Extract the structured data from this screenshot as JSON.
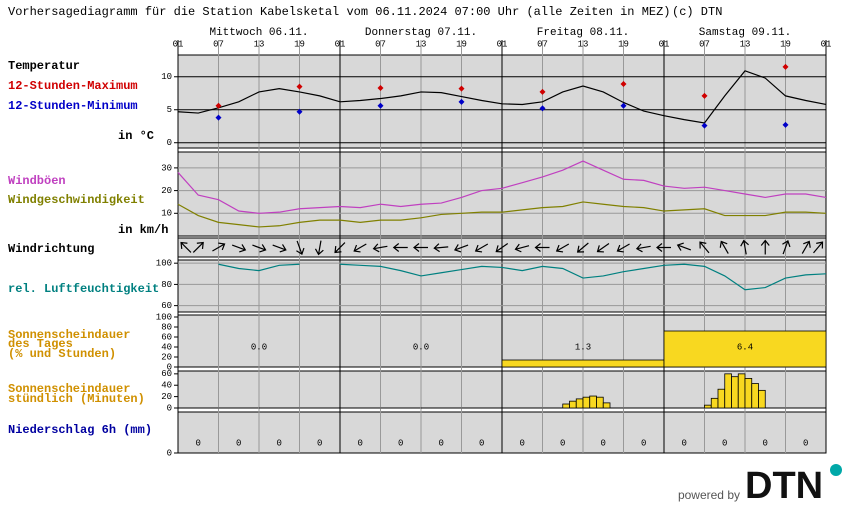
{
  "title": "Vorhersagediagramm für die Station Kabelsketal vom 06.11.2024 07:00 Uhr (alle Zeiten in MEZ)",
  "copyright": "(c) DTN",
  "days": [
    "Mittwoch 06.11.",
    "Donnerstag 07.11.",
    "Freitag 08.11.",
    "Samstag 09.11."
  ],
  "hour_labels": [
    "01",
    "07",
    "13",
    "19",
    "01",
    "07",
    "13",
    "19",
    "01",
    "07",
    "13",
    "19",
    "01",
    "07",
    "13",
    "19",
    "01"
  ],
  "logo": {
    "powered_by": "powered by",
    "brand": "DTN"
  },
  "chart_data": [
    {
      "type": "line",
      "title": "Temperatur",
      "unit": "in °C",
      "ylim": [
        -0.8,
        13.3
      ],
      "yticks": [
        0,
        5,
        10
      ],
      "grid": true,
      "series": [
        {
          "color": "#000000",
          "values": [
            4.7,
            4.5,
            5.3,
            6.2,
            7.7,
            8.2,
            7.7,
            7.1,
            6.2,
            6.4,
            6.7,
            7.1,
            7.7,
            7.6,
            7.0,
            6.4,
            5.9,
            5.8,
            6.2,
            7.7,
            8.6,
            7.7,
            6.1,
            4.8,
            4.1,
            3.5,
            3.0,
            7.1,
            10.9,
            9.8,
            7.1,
            6.4,
            5.8
          ]
        },
        {
          "name": "12-Stunden-Maximum",
          "color": "#d00000",
          "mode": "markers",
          "values": [
            5.6,
            8.5,
            8.3,
            8.2,
            7.7,
            8.9,
            7.1,
            11.5
          ]
        },
        {
          "name": "12-Stunden-Minimum",
          "color": "#0000c8",
          "mode": "markers",
          "values": [
            3.8,
            4.7,
            5.6,
            6.2,
            5.2,
            5.6,
            2.6,
            2.7
          ]
        }
      ]
    },
    {
      "type": "line",
      "unit": "in km/h",
      "ylim": [
        0,
        37
      ],
      "yticks": [
        10,
        20,
        30
      ],
      "grid": true,
      "series": [
        {
          "name": "Windböen",
          "color": "#c040c0",
          "values": [
            28,
            18,
            16,
            11,
            10,
            10.5,
            12,
            12.5,
            13,
            12.5,
            14,
            13,
            14,
            14.5,
            17,
            20,
            21,
            23.5,
            26,
            29,
            33,
            29,
            25,
            24.5,
            22,
            21,
            21.5,
            20,
            18.5,
            17,
            18.5,
            18.5,
            17
          ]
        },
        {
          "name": "Windgeschwindigkeit",
          "color": "#808000",
          "values": [
            14,
            9,
            6,
            5,
            4,
            4.5,
            6,
            7,
            7,
            6,
            7,
            7,
            8,
            9.5,
            10,
            10.5,
            10.5,
            11.5,
            12.5,
            13,
            15,
            14,
            13,
            12.5,
            11,
            11.5,
            12,
            9,
            9,
            9,
            10.5,
            10.5,
            10
          ]
        }
      ]
    },
    {
      "type": "arrows",
      "title": "Windrichtung",
      "color": "#000000",
      "values": [
        135,
        225,
        240,
        290,
        290,
        290,
        340,
        10,
        45,
        60,
        80,
        90,
        90,
        85,
        70,
        60,
        55,
        75,
        90,
        60,
        50,
        55,
        60,
        80,
        90,
        110,
        140,
        150,
        170,
        180,
        200,
        210,
        220
      ]
    },
    {
      "type": "line",
      "ylim": [
        54,
        103
      ],
      "yticks": [
        60,
        80,
        100
      ],
      "grid": true,
      "series": [
        {
          "name": "rel. Luftfeuchtigkeit",
          "color": "#008080",
          "values": [
            null,
            null,
            99,
            95,
            93,
            98,
            99,
            null,
            99,
            98,
            97,
            93,
            88,
            91,
            94,
            97,
            96,
            93,
            97,
            95,
            86,
            88,
            92,
            95,
            98,
            99,
            97,
            88,
            75,
            77,
            86,
            89,
            90
          ]
        }
      ]
    },
    {
      "type": "bar",
      "title": [
        "Sonnenscheindauer",
        "des Tages",
        "(% und Stunden)"
      ],
      "color": "#f8d820",
      "ylim": [
        0,
        104
      ],
      "yticks": [
        0,
        20,
        40,
        60,
        80,
        100
      ],
      "values": [
        0,
        0,
        14,
        72
      ],
      "hours": {
        "values": [
          0,
          0,
          1.3,
          6.4
        ],
        "value_labels": [
          "0.0",
          "0.0",
          "1.3",
          "6.4"
        ]
      }
    },
    {
      "type": "bar",
      "title": [
        "Sonnenscheindauer",
        "stündlich (Minuten)"
      ],
      "color": "#f8d820",
      "ylim": [
        0,
        65
      ],
      "yticks": [
        0,
        20,
        40,
        60
      ],
      "values": [
        0,
        0,
        0,
        0,
        0,
        0,
        0,
        0,
        0,
        0,
        0,
        0,
        0,
        0,
        0,
        0,
        0,
        0,
        0,
        0,
        0,
        0,
        0,
        0,
        0,
        0,
        0,
        0,
        0,
        0,
        0,
        0,
        0,
        0,
        0,
        0,
        0,
        0,
        0,
        0,
        0,
        0,
        0,
        0,
        0,
        0,
        0,
        0,
        0,
        0,
        0,
        0,
        0,
        0,
        0,
        0,
        0,
        7,
        12,
        16,
        19,
        21,
        19,
        9,
        0,
        0,
        0,
        0,
        0,
        0,
        0,
        0,
        0,
        0,
        0,
        0,
        0,
        0,
        5,
        17,
        33,
        60,
        55,
        60,
        52,
        43,
        31,
        0,
        0,
        0,
        0,
        0,
        0,
        0,
        0,
        0
      ]
    },
    {
      "type": "bar",
      "title": "Niederschlag 6h (mm)",
      "color": "#0000a0",
      "ylim": [
        0,
        10
      ],
      "yticks": [
        0
      ],
      "values": [
        0,
        0,
        0,
        0,
        0,
        0,
        0,
        0,
        0,
        0,
        0,
        0,
        0,
        0,
        0,
        0
      ]
    }
  ]
}
